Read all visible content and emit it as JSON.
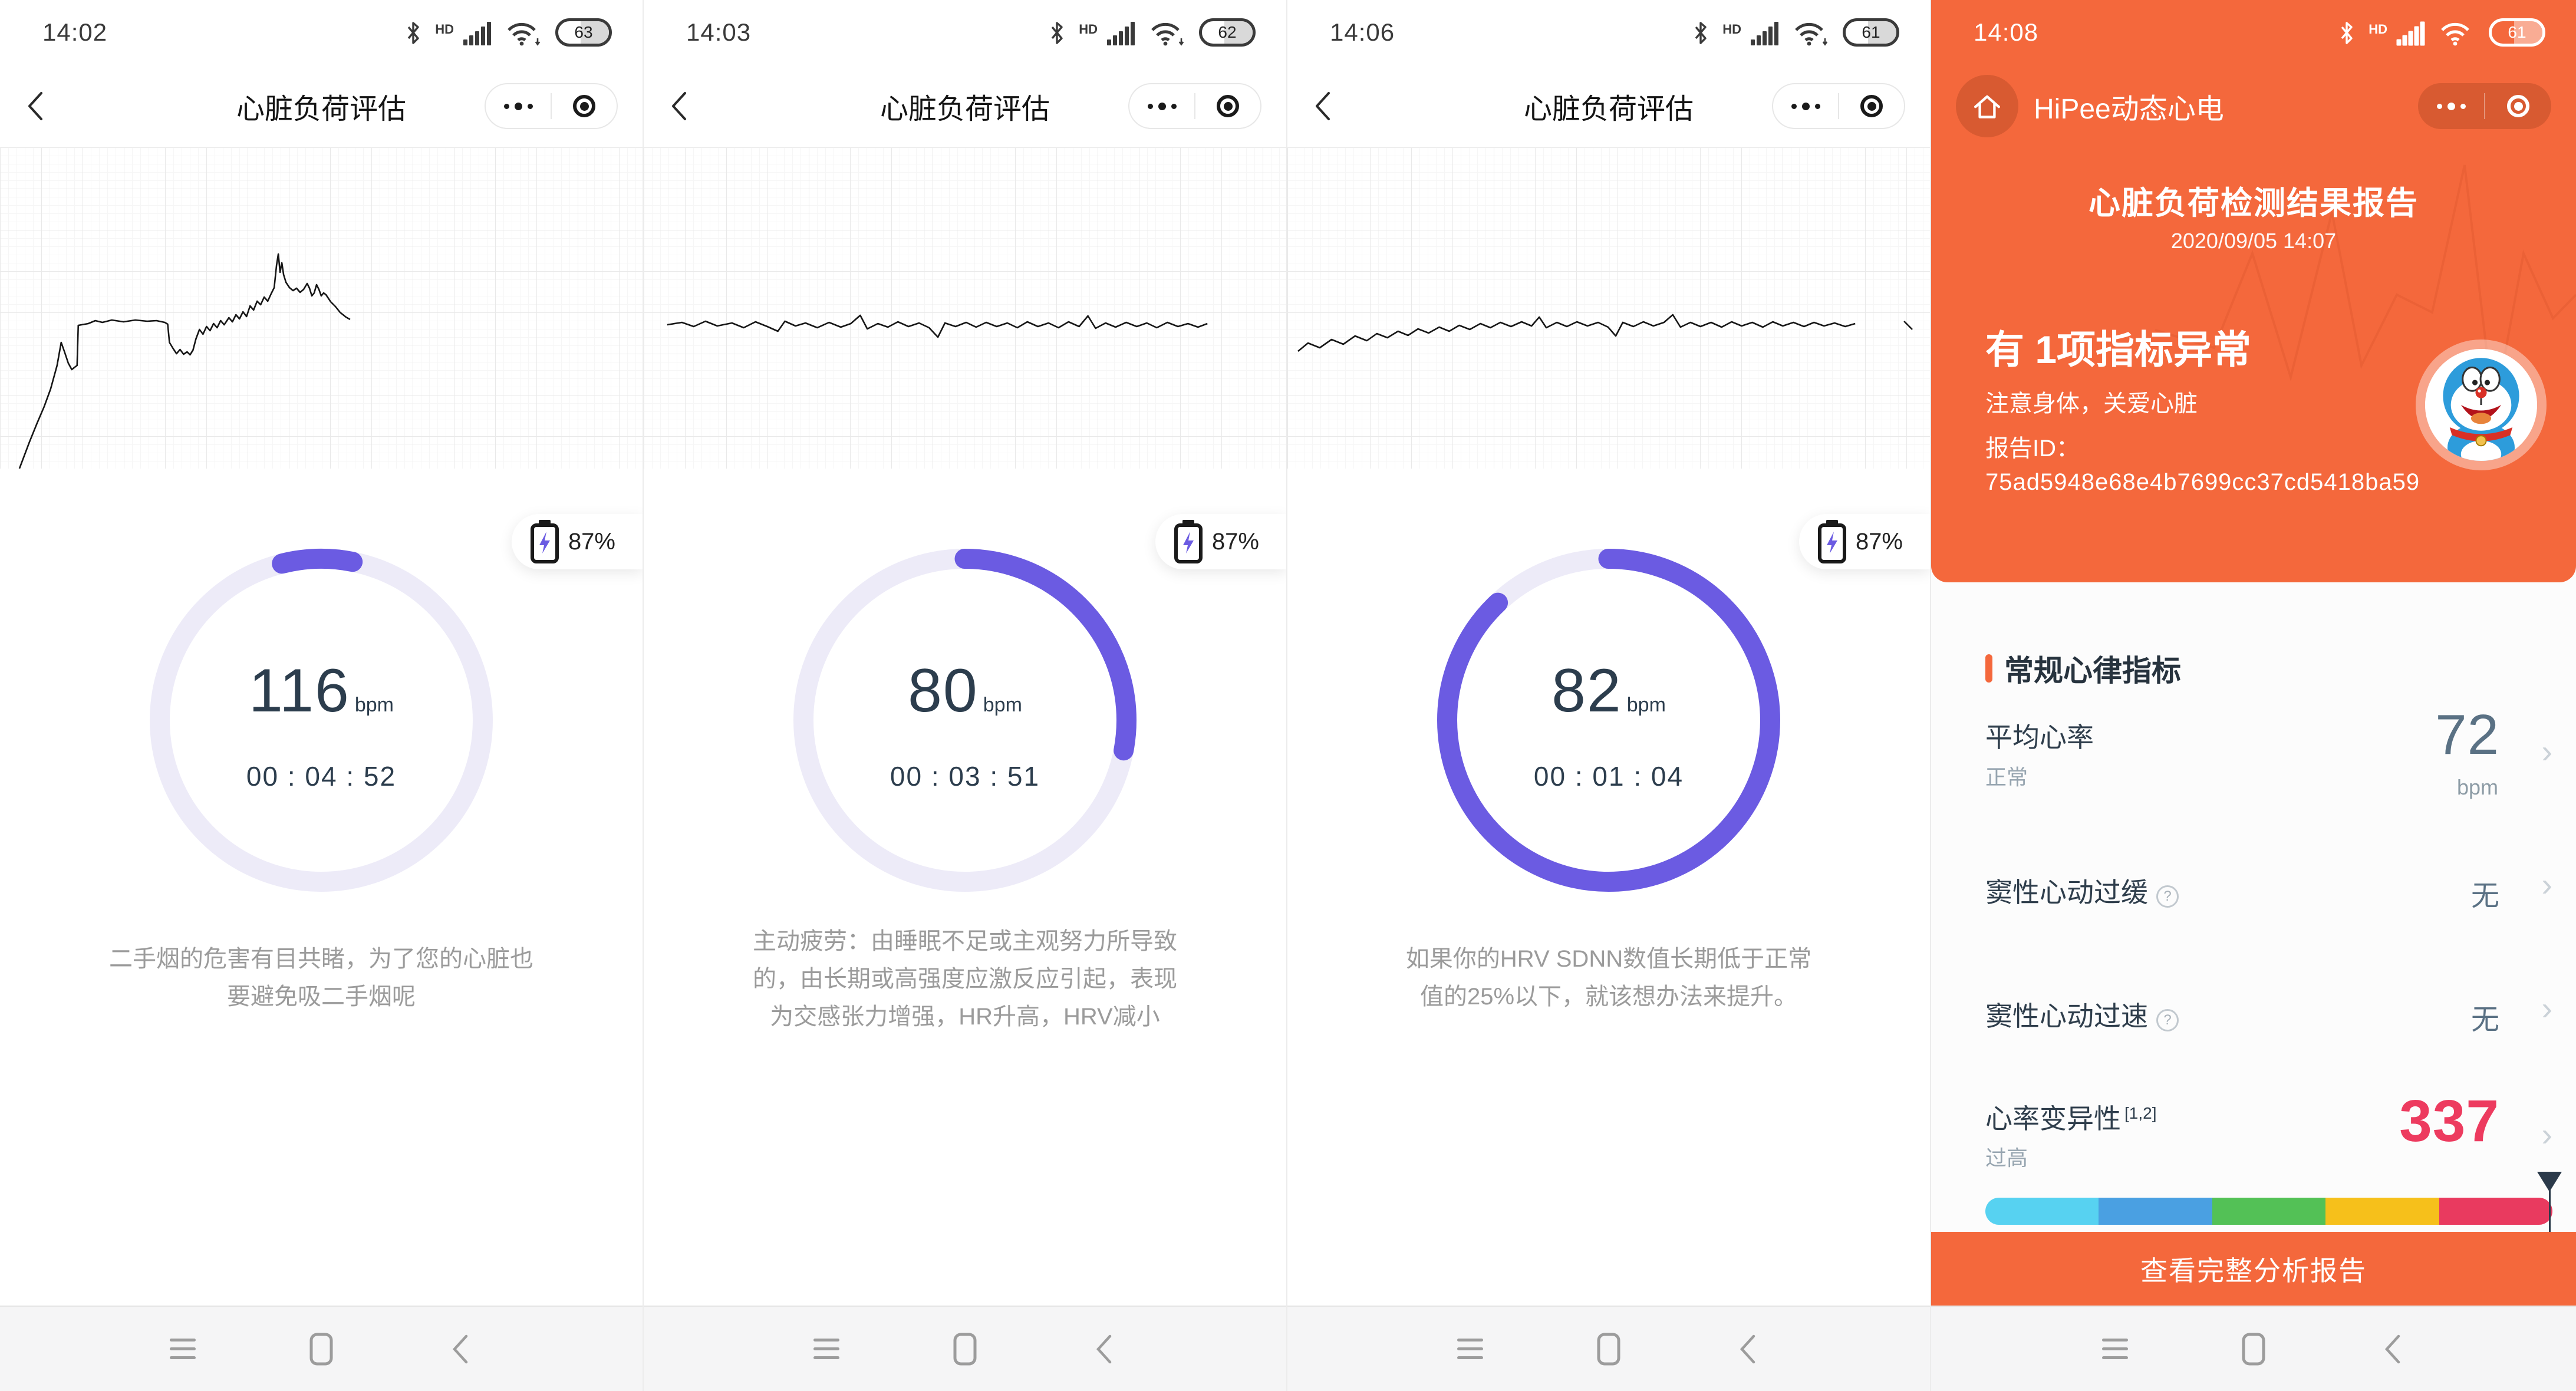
{
  "status": {
    "hd_label": "HD"
  },
  "colors": {
    "accent_orange": "#F4683C",
    "ring_purple": "#6B5BE2",
    "ring_track": "#EDEBF8",
    "value_pink": "#ED3B5F",
    "value_slate": "#5A7184"
  },
  "panels": [
    {
      "time": "14:02",
      "battery_level": "63",
      "title": "心脏负荷评估",
      "chip_battery": "87%",
      "bpm": "116",
      "bpm_unit": "bpm",
      "duration": "00 : 04 : 52",
      "ring": {
        "percent": 7,
        "start_deg": -104
      },
      "caption_lines": [
        "二手烟的危害有目共睹，为了您的心脏也",
        "要避免吸二手烟呢"
      ],
      "trace": [
        [
          33,
          545
        ],
        [
          50,
          500
        ],
        [
          63,
          468
        ],
        [
          75,
          440
        ],
        [
          86,
          410
        ],
        [
          97,
          370
        ],
        [
          104,
          331
        ],
        [
          110,
          348
        ],
        [
          116,
          366
        ],
        [
          122,
          377
        ],
        [
          127,
          373
        ],
        [
          131,
          370
        ],
        [
          133,
          302
        ],
        [
          150,
          299
        ],
        [
          162,
          294
        ],
        [
          174,
          297
        ],
        [
          190,
          293
        ],
        [
          210,
          296
        ],
        [
          230,
          293
        ],
        [
          250,
          295
        ],
        [
          266,
          294
        ],
        [
          280,
          297
        ],
        [
          285,
          300
        ],
        [
          288,
          331
        ],
        [
          294,
          341
        ],
        [
          300,
          350
        ],
        [
          306,
          343
        ],
        [
          312,
          351
        ],
        [
          318,
          347
        ],
        [
          323,
          352
        ],
        [
          328,
          344
        ],
        [
          333,
          325
        ],
        [
          339,
          309
        ],
        [
          345,
          317
        ],
        [
          351,
          304
        ],
        [
          357,
          311
        ],
        [
          363,
          299
        ],
        [
          369,
          306
        ],
        [
          375,
          294
        ],
        [
          381,
          301
        ],
        [
          389,
          289
        ],
        [
          395,
          296
        ],
        [
          401,
          284
        ],
        [
          407,
          291
        ],
        [
          413,
          279
        ],
        [
          419,
          287
        ],
        [
          425,
          269
        ],
        [
          431,
          276
        ],
        [
          437,
          261
        ],
        [
          443,
          267
        ],
        [
          449,
          254
        ],
        [
          455,
          261
        ],
        [
          461,
          248
        ],
        [
          466,
          238
        ],
        [
          470,
          200
        ],
        [
          473,
          181
        ],
        [
          476,
          212
        ],
        [
          479,
          196
        ],
        [
          482,
          216
        ],
        [
          486,
          229
        ],
        [
          492,
          238
        ],
        [
          498,
          243
        ],
        [
          504,
          239
        ],
        [
          510,
          246
        ],
        [
          516,
          241
        ],
        [
          522,
          231
        ],
        [
          526,
          239
        ],
        [
          530,
          252
        ],
        [
          534,
          247
        ],
        [
          538,
          233
        ],
        [
          542,
          241
        ],
        [
          546,
          252
        ],
        [
          550,
          247
        ],
        [
          554,
          250
        ],
        [
          558,
          256
        ],
        [
          562,
          262
        ],
        [
          570,
          270
        ],
        [
          578,
          280
        ],
        [
          588,
          288
        ],
        [
          595,
          292
        ]
      ]
    },
    {
      "time": "14:03",
      "battery_level": "62",
      "title": "心脏负荷评估",
      "chip_battery": "87%",
      "bpm": "80",
      "bpm_unit": "bpm",
      "duration": "00 : 03 : 51",
      "ring": {
        "percent": 28,
        "start_deg": -90
      },
      "caption_lines": [
        "主动疲劳：由睡眠不足或主观努力所导致",
        "的，由长期或高强度应激反应引起，表现",
        "为交感张力增强，HR升高，HRV减小"
      ],
      "trace": [
        [
          40,
          301
        ],
        [
          65,
          297
        ],
        [
          85,
          304
        ],
        [
          105,
          295
        ],
        [
          125,
          303
        ],
        [
          150,
          298
        ],
        [
          170,
          306
        ],
        [
          190,
          296
        ],
        [
          210,
          304
        ],
        [
          228,
          312
        ],
        [
          240,
          295
        ],
        [
          258,
          303
        ],
        [
          275,
          298
        ],
        [
          295,
          306
        ],
        [
          315,
          297
        ],
        [
          335,
          305
        ],
        [
          352,
          299
        ],
        [
          368,
          285
        ],
        [
          380,
          308
        ],
        [
          398,
          299
        ],
        [
          415,
          305
        ],
        [
          432,
          296
        ],
        [
          450,
          304
        ],
        [
          468,
          298
        ],
        [
          485,
          306
        ],
        [
          500,
          322
        ],
        [
          512,
          298
        ],
        [
          530,
          304
        ],
        [
          548,
          297
        ],
        [
          565,
          305
        ],
        [
          582,
          297
        ],
        [
          600,
          304
        ],
        [
          618,
          298
        ],
        [
          635,
          306
        ],
        [
          652,
          296
        ],
        [
          670,
          304
        ],
        [
          688,
          298
        ],
        [
          705,
          306
        ],
        [
          722,
          296
        ],
        [
          740,
          304
        ],
        [
          755,
          286
        ],
        [
          768,
          307
        ],
        [
          785,
          298
        ],
        [
          802,
          305
        ],
        [
          820,
          297
        ],
        [
          838,
          304
        ],
        [
          855,
          298
        ],
        [
          872,
          306
        ],
        [
          890,
          297
        ],
        [
          908,
          304
        ],
        [
          925,
          299
        ],
        [
          942,
          305
        ],
        [
          958,
          299
        ]
      ]
    },
    {
      "time": "14:06",
      "battery_level": "61",
      "title": "心脏负荷评估",
      "chip_battery": "87%",
      "bpm": "82",
      "bpm_unit": "bpm",
      "duration": "00 : 01 : 04",
      "ring": {
        "percent": 88,
        "start_deg": -90
      },
      "caption_lines": [
        "如果你的HRV SDNN数值长期低于正常",
        "值的25%以下，就该想办法来提升。"
      ],
      "trace": [
        [
          18,
          346
        ],
        [
          35,
          332
        ],
        [
          55,
          340
        ],
        [
          75,
          326
        ],
        [
          95,
          334
        ],
        [
          115,
          320
        ],
        [
          135,
          328
        ],
        [
          152,
          316
        ],
        [
          170,
          323
        ],
        [
          188,
          312
        ],
        [
          205,
          319
        ],
        [
          222,
          308
        ],
        [
          240,
          315
        ],
        [
          258,
          305
        ],
        [
          275,
          312
        ],
        [
          292,
          302
        ],
        [
          310,
          309
        ],
        [
          328,
          299
        ],
        [
          345,
          306
        ],
        [
          362,
          297
        ],
        [
          380,
          304
        ],
        [
          398,
          296
        ],
        [
          415,
          303
        ],
        [
          428,
          288
        ],
        [
          440,
          306
        ],
        [
          458,
          297
        ],
        [
          475,
          304
        ],
        [
          492,
          296
        ],
        [
          510,
          303
        ],
        [
          528,
          297
        ],
        [
          545,
          305
        ],
        [
          558,
          320
        ],
        [
          570,
          297
        ],
        [
          588,
          304
        ],
        [
          605,
          296
        ],
        [
          622,
          303
        ],
        [
          640,
          297
        ],
        [
          655,
          284
        ],
        [
          668,
          305
        ],
        [
          685,
          297
        ],
        [
          702,
          304
        ],
        [
          720,
          297
        ],
        [
          738,
          305
        ],
        [
          755,
          296
        ],
        [
          772,
          303
        ],
        [
          790,
          297
        ],
        [
          808,
          305
        ],
        [
          825,
          296
        ],
        [
          842,
          303
        ],
        [
          860,
          297
        ],
        [
          878,
          304
        ],
        [
          895,
          297
        ],
        [
          912,
          303
        ],
        [
          930,
          298
        ],
        [
          948,
          304
        ],
        [
          965,
          299
        ]
      ],
      "trace2": [
        [
          1048,
          295
        ],
        [
          1062,
          309
        ]
      ]
    }
  ],
  "report": {
    "time": "14:08",
    "battery_level": "61",
    "app_title": "HiPee动态心电",
    "report_title": "心脏负荷检测结果报告",
    "report_datetime": "2020/09/05 14:07",
    "abnormal_headline": "有 1项指标异常",
    "abnormal_sub": "注意身体，关爱心脏",
    "report_id_label": "报告ID：",
    "report_id": "75ad5948e68e4b7699cc37cd5418ba59",
    "section_title": "常规心律指标",
    "rows": [
      {
        "label": "平均心率",
        "sub": "正常",
        "value": "72",
        "unit": "bpm"
      },
      {
        "label": "窦性心动过缓",
        "value": "无",
        "help": "?"
      },
      {
        "label": "窦性心动过速",
        "value": "无",
        "help": "?"
      },
      {
        "label": "心率变异性",
        "superscript": "[1,2]",
        "sub": "过高",
        "value": "337"
      }
    ],
    "scale_colors": [
      "#57D2F1",
      "#4AA0E2",
      "#53C156",
      "#F6C01B",
      "#E93A5F"
    ],
    "cta_button": "查看完整分析报告"
  }
}
